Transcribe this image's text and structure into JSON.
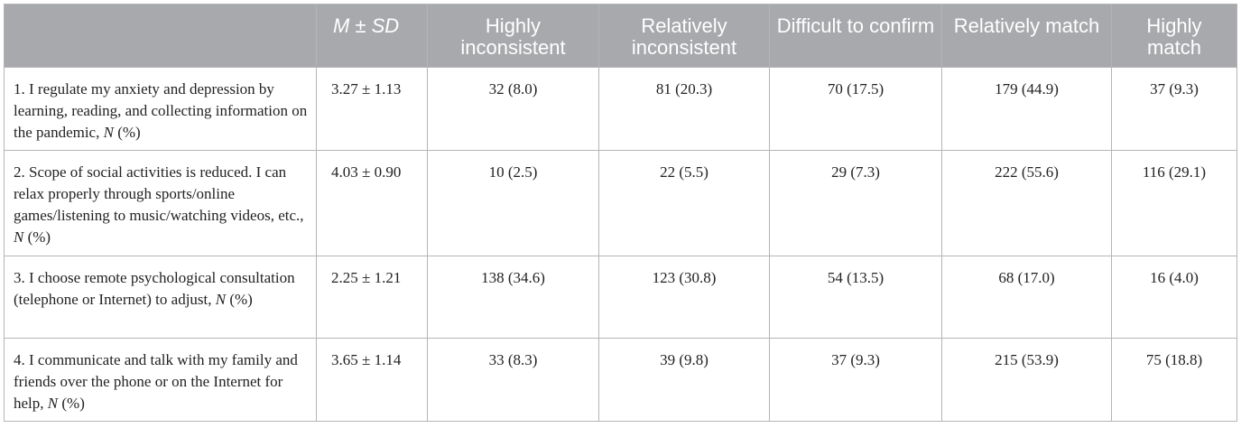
{
  "table": {
    "headers": {
      "item": "",
      "mean": "M ± SD",
      "highly_inconsistent": "Highly inconsistent",
      "relatively_inconsistent": "Relatively inconsistent",
      "difficult_to_confirm": "Difficult to confirm",
      "relatively_match": "Relatively match",
      "highly_match": "Highly match"
    },
    "rows": [
      {
        "item": "1. I regulate my anxiety and depression by learning, reading, and collecting information on the pandemic,",
        "suffix_n": "N",
        "suffix_pct": "(%)",
        "mean": "3.27 ± 1.13",
        "values": [
          "32 (8.0)",
          "81 (20.3)",
          "70 (17.5)",
          "179 (44.9)",
          "37 (9.3)"
        ]
      },
      {
        "item": "2. Scope of social activities is reduced. I can relax properly through sports/online games/listening to music/watching videos, etc.,",
        "suffix_n": "N",
        "suffix_pct": "(%)",
        "mean": "4.03 ± 0.90",
        "values": [
          "10 (2.5)",
          "22 (5.5)",
          "29 (7.3)",
          "222 (55.6)",
          "116 (29.1)"
        ]
      },
      {
        "item": "3. I choose remote psychological consultation (telephone or Internet) to adjust,",
        "suffix_n": "N",
        "suffix_pct": "(%)",
        "mean": "2.25 ± 1.21",
        "values": [
          "138 (34.6)",
          "123 (30.8)",
          "54 (13.5)",
          "68 (17.0)",
          "16 (4.0)"
        ]
      },
      {
        "item": "4. I communicate and talk with my family and friends over the phone or on the Internet for help,",
        "suffix_n": "N",
        "suffix_pct": "(%)",
        "mean": "3.65 ± 1.14",
        "values": [
          "33 (8.3)",
          "39 (9.8)",
          "37 (9.3)",
          "215 (53.9)",
          "75 (18.8)"
        ]
      }
    ]
  }
}
